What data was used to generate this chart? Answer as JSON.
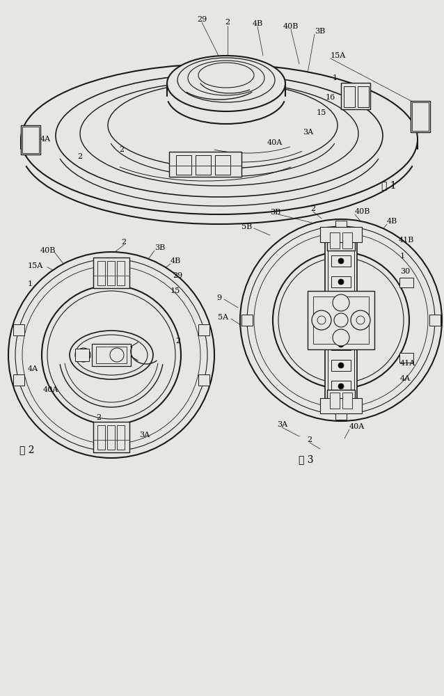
{
  "bg_color": "#e8e6e2",
  "line_color": "#1a1a1a",
  "fig1_label": "图 1",
  "fig2_label": "图 2",
  "fig3_label": "图 3"
}
